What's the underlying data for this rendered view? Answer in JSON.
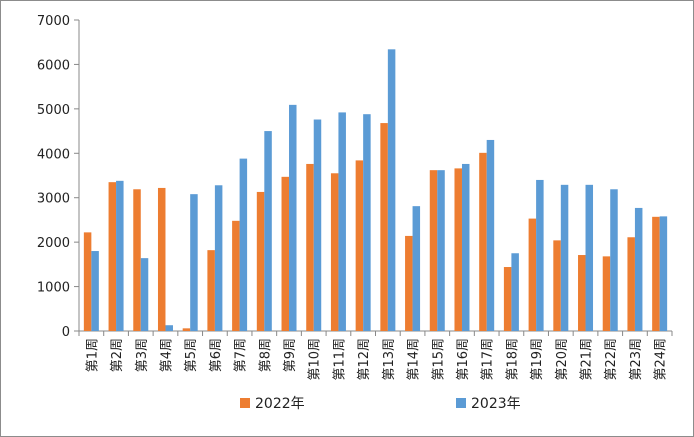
{
  "chart_data": {
    "type": "bar",
    "categories": [
      "第1周",
      "第2周",
      "第3周",
      "第4周",
      "第5周",
      "第6周",
      "第7周",
      "第8周",
      "第9周",
      "第10周",
      "第11周",
      "第12周",
      "第13周",
      "第14周",
      "第15周",
      "第16周",
      "第17周",
      "第18周",
      "第19周",
      "第20周",
      "第21周",
      "第22周",
      "第23周",
      "第24周"
    ],
    "series": [
      {
        "name": "2022年",
        "color": "#ED7D31",
        "values": [
          2220,
          3350,
          3190,
          3220,
          60,
          1820,
          2480,
          3130,
          3470,
          3760,
          3550,
          3840,
          4680,
          2140,
          3620,
          3660,
          4010,
          1440,
          2530,
          2040,
          1710,
          1680,
          2110,
          2570
        ]
      },
      {
        "name": "2023年",
        "color": "#5B9BD5",
        "values": [
          1800,
          3380,
          1640,
          130,
          3080,
          3280,
          3880,
          4500,
          5090,
          4760,
          4920,
          4880,
          6340,
          2810,
          3620,
          3760,
          4300,
          1750,
          3400,
          3290,
          3290,
          3190,
          2770,
          2580
        ]
      }
    ],
    "title": "",
    "xlabel": "",
    "ylabel": "",
    "ylim": [
      0,
      7000
    ],
    "yticks": [
      0,
      1000,
      2000,
      3000,
      4000,
      5000,
      6000,
      7000
    ],
    "grid": false,
    "legend": "bottom"
  }
}
